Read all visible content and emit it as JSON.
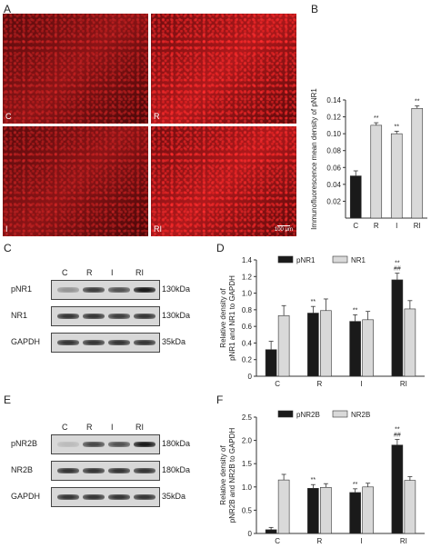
{
  "panels": {
    "A": "A",
    "B": "B",
    "C": "C",
    "D": "D",
    "E": "E",
    "F": "F"
  },
  "micrographs": [
    {
      "label": "C"
    },
    {
      "label": "R"
    },
    {
      "label": "I"
    },
    {
      "label": "RI"
    }
  ],
  "scale_bar": "100 μm",
  "blot_C": {
    "lanes": [
      "C",
      "R",
      "I",
      "RI"
    ],
    "rows": [
      {
        "name": "pNR1",
        "mw": "130kDa",
        "intensity": [
          0.35,
          0.8,
          0.7,
          1.0
        ]
      },
      {
        "name": "NR1",
        "mw": "130kDa",
        "intensity": [
          0.85,
          0.85,
          0.8,
          0.85
        ]
      },
      {
        "name": "GAPDH",
        "mw": "35kDa",
        "intensity": [
          0.85,
          0.85,
          0.85,
          0.85
        ]
      }
    ]
  },
  "blot_E": {
    "lanes": [
      "C",
      "R",
      "I",
      "RI"
    ],
    "rows": [
      {
        "name": "pNR2B",
        "mw": "180kDa",
        "intensity": [
          0.15,
          0.75,
          0.7,
          1.0
        ]
      },
      {
        "name": "NR2B",
        "mw": "180kDa",
        "intensity": [
          0.85,
          0.85,
          0.85,
          0.85
        ]
      },
      {
        "name": "GAPDH",
        "mw": "35kDa",
        "intensity": [
          0.85,
          0.85,
          0.85,
          0.85
        ]
      }
    ]
  },
  "chart_data": [
    {
      "panel": "B",
      "type": "bar",
      "categories": [
        "C",
        "R",
        "I",
        "RI"
      ],
      "values": [
        0.05,
        0.11,
        0.1,
        0.13
      ],
      "errors": [
        0.006,
        0.003,
        0.003,
        0.003
      ],
      "annotations": [
        "",
        "**",
        "**",
        "**"
      ],
      "ylabel": "Immunofluorescence mean density of pNR1",
      "ylim": [
        0,
        0.14
      ],
      "yticks": [
        "0.02",
        "0.04",
        "0.06",
        "0.08",
        "0.10",
        "0.12",
        "0.14"
      ],
      "bar_colors": [
        "#1a1a1a",
        "#d9d9d9",
        "#d9d9d9",
        "#d9d9d9"
      ]
    },
    {
      "panel": "D",
      "type": "bar",
      "categories": [
        "C",
        "R",
        "I",
        "RI"
      ],
      "series": [
        {
          "name": "pNR1",
          "values": [
            0.32,
            0.76,
            0.66,
            1.16
          ],
          "errors": [
            0.1,
            0.08,
            0.08,
            0.08
          ],
          "color": "#1a1a1a"
        },
        {
          "name": "NR1",
          "values": [
            0.73,
            0.79,
            0.68,
            0.81
          ],
          "errors": [
            0.12,
            0.14,
            0.1,
            0.1
          ],
          "color": "#d9d9d9"
        }
      ],
      "annotations": [
        "",
        "**",
        "**",
        "**\n##"
      ],
      "ylabel": "Relative density of\npNR1 and NR1 to GAPDH",
      "ylim": [
        0,
        1.4
      ],
      "yticks": [
        "0",
        "0.2",
        "0.4",
        "0.6",
        "0.8",
        "1.0",
        "1.2",
        "1.4"
      ],
      "legend": "top"
    },
    {
      "panel": "F",
      "type": "bar",
      "categories": [
        "C",
        "R",
        "I",
        "RI"
      ],
      "series": [
        {
          "name": "pNR2B",
          "values": [
            0.08,
            0.97,
            0.88,
            1.9
          ],
          "errors": [
            0.05,
            0.08,
            0.08,
            0.12
          ],
          "color": "#1a1a1a"
        },
        {
          "name": "NR2B",
          "values": [
            1.15,
            0.99,
            1.0,
            1.14
          ],
          "errors": [
            0.12,
            0.08,
            0.08,
            0.08
          ],
          "color": "#d9d9d9"
        }
      ],
      "annotations": [
        "",
        "**",
        "**",
        "**\n##"
      ],
      "ylabel": "Relative density of\npNR2B and NR2B to GAPDH",
      "ylim": [
        0,
        2.5
      ],
      "yticks": [
        "0",
        "0.5",
        "1.0",
        "1.5",
        "2.0",
        "2.5"
      ],
      "legend": "top"
    }
  ]
}
